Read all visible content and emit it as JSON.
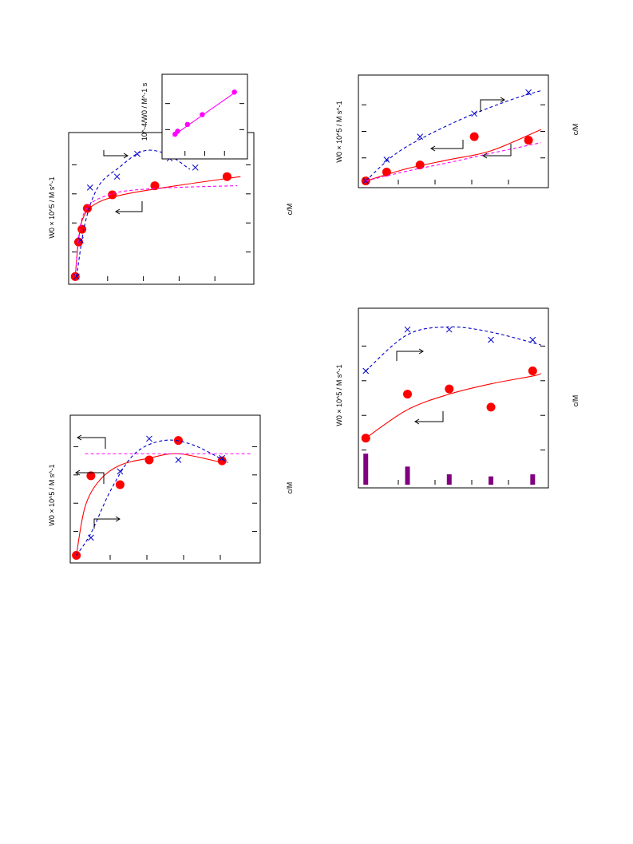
{
  "colors": {
    "series1": "#ff0000",
    "series2": "#0000cc",
    "series3": "#ff00ff",
    "bars": "#800080",
    "axis": "#000000"
  },
  "chart_data": [
    {
      "id": "a",
      "type": "scatter",
      "ylabel": "W0 × 10^5 / M s^-1",
      "xlabel": "c/M",
      "legend": "none",
      "grid": false,
      "x_ticks": 5,
      "y_ticks": 5,
      "series": [
        {
          "style": "circle",
          "color": "#ff0000",
          "fit": "solid",
          "points": [
            [
              0.0,
              0.0
            ],
            [
              0.05,
              0.38
            ],
            [
              0.1,
              0.52
            ],
            [
              0.18,
              0.75
            ],
            [
              0.55,
              0.9
            ],
            [
              1.18,
              1.0
            ],
            [
              2.25,
              1.1
            ]
          ],
          "fit_line": [
            [
              0.0,
              0.0
            ],
            [
              0.05,
              0.4
            ],
            [
              0.12,
              0.65
            ],
            [
              0.3,
              0.8
            ],
            [
              0.7,
              0.9
            ],
            [
              1.5,
              1.0
            ],
            [
              2.45,
              1.1
            ]
          ]
        },
        {
          "style": "cross",
          "color": "#0000cc",
          "fit": "dashed",
          "points": [
            [
              0.02,
              0.0
            ],
            [
              0.08,
              0.4
            ],
            [
              0.22,
              0.98
            ],
            [
              0.62,
              1.1
            ],
            [
              0.92,
              1.35
            ],
            [
              1.4,
              1.3
            ],
            [
              1.78,
              1.2
            ]
          ],
          "fit_line": [
            [
              0.02,
              0.0
            ],
            [
              0.15,
              0.6
            ],
            [
              0.35,
              1.0
            ],
            [
              0.65,
              1.2
            ],
            [
              1.0,
              1.38
            ],
            [
              1.35,
              1.35
            ],
            [
              1.7,
              1.18
            ]
          ]
        },
        {
          "style": "none",
          "color": "#ff00ff",
          "fit": "dashed",
          "fit_line": [
            [
              0.0,
              0.0
            ],
            [
              0.12,
              0.68
            ],
            [
              0.5,
              0.9
            ],
            [
              1.2,
              0.97
            ],
            [
              2.4,
              1.0
            ]
          ]
        }
      ],
      "inset": {
        "ylabel": "10^-4/W0 / M^-1 s",
        "series": [
          {
            "style": "circle",
            "color": "#ff00ff",
            "fit": "solid",
            "points": [
              [
                0.2,
                0.42
              ],
              [
                0.25,
                0.45
              ],
              [
                0.45,
                0.52
              ],
              [
                0.75,
                0.62
              ],
              [
                1.4,
                0.85
              ]
            ],
            "fit_line": [
              [
                0.15,
                0.4
              ],
              [
                1.45,
                0.86
              ]
            ]
          }
        ]
      }
    },
    {
      "id": "b",
      "type": "scatter",
      "ylabel": "W0 × 10^5 / M s^-1",
      "xlabel": "c/M",
      "legend": "none",
      "grid": false,
      "series": [
        {
          "style": "circle",
          "color": "#ff0000",
          "fit": "solid",
          "points": [
            [
              0.0,
              0.0
            ],
            [
              0.5,
              0.25
            ],
            [
              1.3,
              0.45
            ],
            [
              2.6,
              1.25
            ],
            [
              3.9,
              1.15
            ]
          ],
          "fit_line": [
            [
              0.0,
              0.0
            ],
            [
              1.0,
              0.35
            ],
            [
              2.0,
              0.6
            ],
            [
              3.0,
              0.85
            ],
            [
              4.2,
              1.45
            ]
          ]
        },
        {
          "style": "cross",
          "color": "#0000cc",
          "fit": "dashed",
          "points": [
            [
              0.0,
              0.0
            ],
            [
              0.5,
              0.6
            ],
            [
              1.3,
              1.25
            ],
            [
              2.6,
              1.9
            ],
            [
              3.9,
              2.5
            ]
          ],
          "fit_line": [
            [
              0.0,
              0.0
            ],
            [
              0.7,
              0.75
            ],
            [
              1.5,
              1.3
            ],
            [
              2.5,
              1.85
            ],
            [
              3.5,
              2.3
            ],
            [
              4.2,
              2.55
            ]
          ]
        },
        {
          "style": "none",
          "color": "#ff00ff",
          "fit": "dashed",
          "fit_line": [
            [
              0.0,
              0.0
            ],
            [
              1.0,
              0.28
            ],
            [
              2.0,
              0.52
            ],
            [
              3.0,
              0.78
            ],
            [
              4.2,
              1.08
            ]
          ]
        }
      ]
    },
    {
      "id": "c",
      "type": "scatter",
      "ylabel": "W0 × 10^5 / M s^-1",
      "xlabel": "c/M",
      "legend": "none",
      "grid": false,
      "series": [
        {
          "style": "circle",
          "color": "#ff0000",
          "fit": "solid",
          "points": [
            [
              0.0,
              0.0
            ],
            [
              0.05,
              0.9
            ],
            [
              0.15,
              0.8
            ],
            [
              0.25,
              1.08
            ],
            [
              0.35,
              1.3
            ],
            [
              0.5,
              1.07
            ]
          ],
          "fit_line": [
            [
              0.0,
              0.0
            ],
            [
              0.03,
              0.55
            ],
            [
              0.08,
              0.85
            ],
            [
              0.15,
              1.02
            ],
            [
              0.25,
              1.1
            ],
            [
              0.35,
              1.15
            ],
            [
              0.5,
              1.05
            ]
          ]
        },
        {
          "style": "cross",
          "color": "#0000cc",
          "fit": "dashed",
          "points": [
            [
              0.05,
              0.2
            ],
            [
              0.15,
              0.95
            ],
            [
              0.25,
              1.32
            ],
            [
              0.35,
              1.08
            ],
            [
              0.5,
              1.1
            ]
          ],
          "fit_line": [
            [
              0.0,
              0.0
            ],
            [
              0.05,
              0.25
            ],
            [
              0.12,
              0.75
            ],
            [
              0.2,
              1.15
            ],
            [
              0.3,
              1.3
            ],
            [
              0.4,
              1.25
            ],
            [
              0.52,
              1.05
            ]
          ]
        },
        {
          "style": "none",
          "color": "#ff00ff",
          "fit": "dashed",
          "fit_line": [
            [
              0.03,
              1.15
            ],
            [
              0.6,
              1.15
            ]
          ]
        }
      ]
    },
    {
      "id": "d",
      "type": "scatter",
      "ylabel": "W0 × 10^5 / M s^-1",
      "xlabel": "c/M",
      "legend": "none",
      "grid": false,
      "series": [
        {
          "style": "circle",
          "color": "#ff0000",
          "fit": "solid",
          "points": [
            [
              0.0,
              0.9
            ],
            [
              1.0,
              1.75
            ],
            [
              2.0,
              1.85
            ],
            [
              3.0,
              1.5
            ],
            [
              4.0,
              2.2
            ]
          ],
          "fit_line": [
            [
              0.0,
              0.9
            ],
            [
              1.0,
              1.45
            ],
            [
              2.0,
              1.75
            ],
            [
              3.0,
              1.95
            ],
            [
              4.0,
              2.1
            ],
            [
              4.2,
              2.15
            ]
          ]
        },
        {
          "style": "cross",
          "color": "#0000cc",
          "fit": "dashed",
          "points": [
            [
              0.0,
              2.2
            ],
            [
              1.0,
              3.0
            ],
            [
              2.0,
              3.0
            ],
            [
              3.0,
              2.8
            ],
            [
              4.0,
              2.8
            ]
          ],
          "fit_line": [
            [
              0.0,
              2.2
            ],
            [
              1.0,
              2.9
            ],
            [
              2.0,
              3.05
            ],
            [
              3.0,
              2.95
            ],
            [
              4.2,
              2.7
            ]
          ]
        },
        {
          "style": "bar",
          "color": "#800080",
          "points": [
            [
              0.0,
              0.6
            ],
            [
              1.0,
              0.35
            ],
            [
              2.0,
              0.2
            ],
            [
              3.0,
              0.16
            ],
            [
              4.0,
              0.2
            ]
          ]
        }
      ]
    }
  ]
}
